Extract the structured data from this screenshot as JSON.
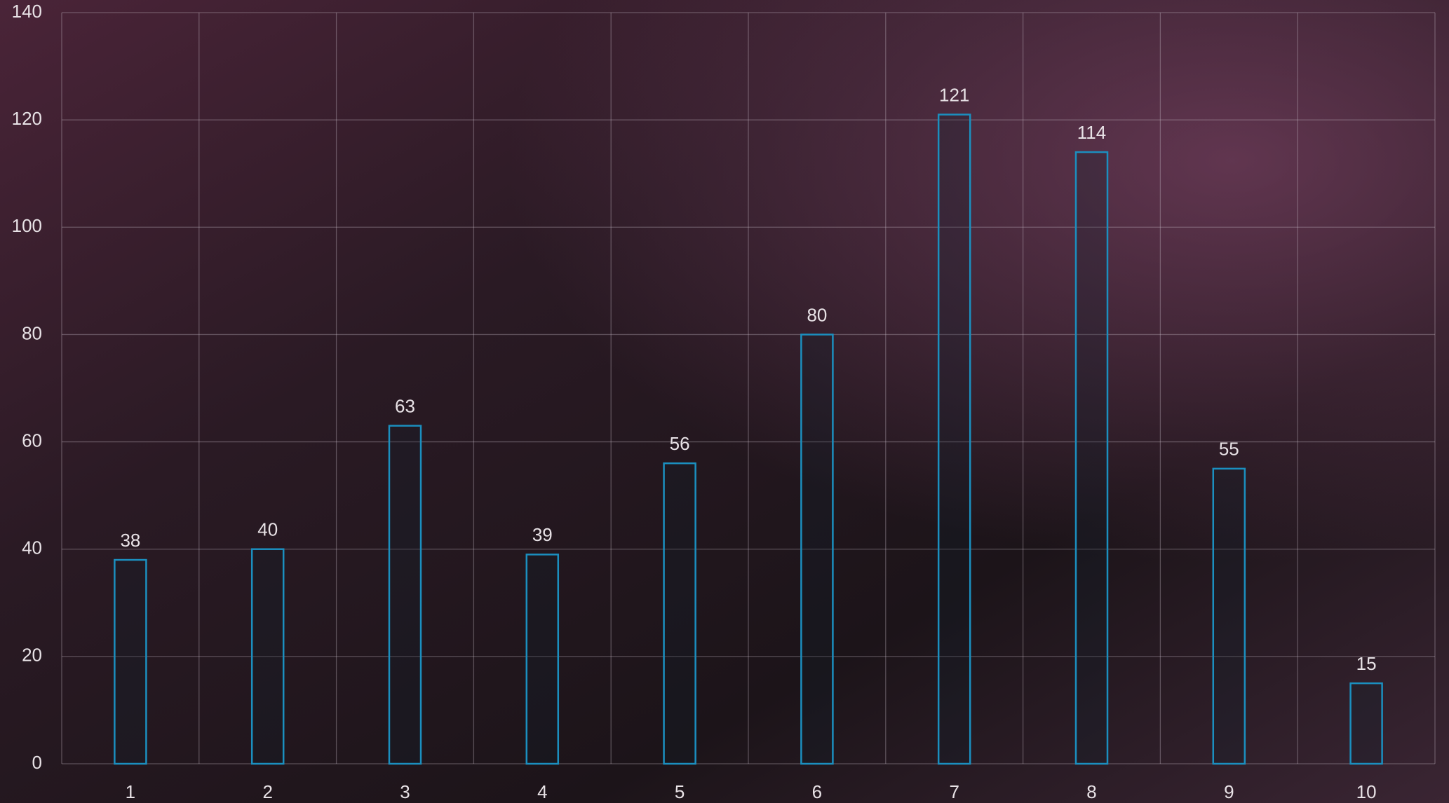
{
  "chart_data": {
    "type": "bar",
    "categories": [
      "1",
      "2",
      "3",
      "4",
      "5",
      "6",
      "7",
      "8",
      "9",
      "10"
    ],
    "values": [
      38,
      40,
      63,
      39,
      56,
      80,
      121,
      114,
      55,
      15
    ],
    "color": "#1b8fbf",
    "ylim": [
      0,
      140
    ],
    "yticks": [
      0,
      20,
      40,
      60,
      80,
      100,
      120,
      140
    ],
    "grid": true
  }
}
